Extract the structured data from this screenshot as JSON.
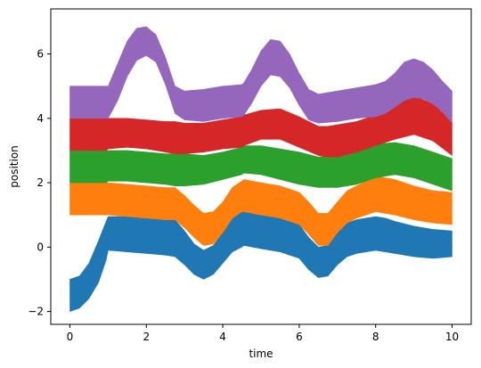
{
  "chart_data": {
    "type": "area",
    "title": "",
    "xlabel": "time",
    "ylabel": "position",
    "xlim": [
      -0.5,
      10.5
    ],
    "ylim": [
      -2.4,
      7.4
    ],
    "xticks": [
      0,
      2,
      4,
      6,
      8,
      10
    ],
    "yticks": [
      -2,
      0,
      2,
      4,
      6
    ],
    "grid": false,
    "legend": "none",
    "series": [
      {
        "color": "#1f77b4",
        "x": [
          0,
          0.25,
          0.5,
          0.75,
          0.95,
          1.0,
          1.5,
          2.0,
          2.5,
          2.75,
          3.0,
          3.25,
          3.5,
          3.75,
          4.0,
          4.25,
          4.5,
          4.55,
          5.0,
          5.5,
          6.0,
          6.25,
          6.5,
          6.75,
          7.0,
          7.25,
          7.5,
          7.75,
          8.0,
          8.25,
          8.5,
          9.0,
          9.5,
          10.0
        ],
        "upper": [
          -1.0,
          -0.9,
          -0.5,
          0.2,
          0.8,
          0.95,
          0.95,
          0.92,
          0.88,
          0.85,
          0.5,
          0.1,
          -0.1,
          0.05,
          0.45,
          0.95,
          1.1,
          1.15,
          1.05,
          0.95,
          0.7,
          0.3,
          0.0,
          0.05,
          0.45,
          0.75,
          0.85,
          0.9,
          0.95,
          0.9,
          0.8,
          0.65,
          0.55,
          0.5
        ],
        "lower": [
          -2.0,
          -1.9,
          -1.6,
          -1.1,
          -0.4,
          -0.1,
          -0.15,
          -0.2,
          -0.25,
          -0.3,
          -0.55,
          -0.85,
          -1.0,
          -0.85,
          -0.5,
          -0.15,
          0.0,
          0.05,
          -0.05,
          -0.15,
          -0.35,
          -0.7,
          -0.95,
          -0.9,
          -0.55,
          -0.3,
          -0.2,
          -0.15,
          -0.1,
          -0.15,
          -0.2,
          -0.3,
          -0.35,
          -0.3
        ]
      },
      {
        "color": "#ff7f0e",
        "x": [
          0,
          0.95,
          1.0,
          1.5,
          2.0,
          2.5,
          2.75,
          3.0,
          3.25,
          3.5,
          3.75,
          4.0,
          4.25,
          4.5,
          4.55,
          5.0,
          5.5,
          6.0,
          6.25,
          6.5,
          6.75,
          7.0,
          7.25,
          7.5,
          7.75,
          8.0,
          8.25,
          8.5,
          9.0,
          9.5,
          10.0
        ],
        "upper": [
          2.0,
          2.0,
          2.0,
          1.95,
          1.9,
          1.85,
          1.85,
          1.6,
          1.3,
          1.05,
          1.1,
          1.4,
          1.85,
          2.05,
          2.1,
          2.0,
          1.9,
          1.7,
          1.4,
          1.05,
          1.05,
          1.4,
          1.75,
          1.9,
          2.05,
          2.2,
          2.15,
          2.1,
          1.9,
          1.75,
          1.7
        ],
        "lower": [
          1.0,
          1.0,
          1.0,
          0.95,
          0.9,
          0.85,
          0.85,
          0.6,
          0.3,
          0.05,
          0.1,
          0.45,
          0.9,
          1.1,
          1.1,
          1.0,
          0.9,
          0.7,
          0.4,
          0.05,
          0.05,
          0.45,
          0.75,
          0.9,
          1.0,
          1.1,
          1.05,
          1.0,
          0.85,
          0.75,
          0.7
        ]
      },
      {
        "color": "#2ca02c",
        "x": [
          0,
          0.95,
          1.0,
          1.5,
          2.0,
          2.5,
          2.75,
          3.0,
          3.5,
          4.0,
          4.5,
          4.55,
          5.0,
          5.5,
          6.0,
          6.5,
          7.0,
          7.5,
          8.0,
          8.5,
          9.0,
          9.5,
          10.0
        ],
        "upper": [
          3.0,
          3.0,
          3.0,
          3.0,
          2.95,
          2.9,
          2.9,
          2.9,
          2.85,
          2.95,
          3.1,
          3.15,
          3.15,
          3.05,
          2.95,
          2.8,
          2.85,
          3.0,
          3.2,
          3.25,
          3.15,
          2.95,
          2.75
        ],
        "lower": [
          2.0,
          2.0,
          2.05,
          2.05,
          2.0,
          1.95,
          1.9,
          1.9,
          1.95,
          2.1,
          2.25,
          2.3,
          2.25,
          2.1,
          1.95,
          1.85,
          1.85,
          1.95,
          2.15,
          2.25,
          2.15,
          1.95,
          1.75
        ]
      },
      {
        "color": "#d62728",
        "x": [
          0,
          0.95,
          1.0,
          1.5,
          2.0,
          2.5,
          2.75,
          3.0,
          3.5,
          4.0,
          4.5,
          4.55,
          5.0,
          5.5,
          6.0,
          6.5,
          6.75,
          7.0,
          7.5,
          8.0,
          8.5,
          9.0,
          9.5,
          10.0
        ],
        "upper": [
          4.0,
          4.0,
          4.0,
          4.0,
          3.95,
          3.9,
          3.9,
          3.85,
          3.85,
          3.95,
          4.05,
          4.1,
          4.25,
          4.3,
          4.05,
          3.75,
          3.75,
          3.8,
          3.9,
          4.1,
          4.4,
          4.7,
          4.45,
          3.9
        ],
        "lower": [
          3.0,
          3.0,
          3.05,
          3.1,
          3.05,
          2.95,
          2.9,
          2.9,
          2.95,
          3.05,
          3.1,
          3.15,
          3.35,
          3.35,
          3.1,
          2.85,
          2.8,
          2.8,
          2.95,
          3.15,
          3.35,
          3.5,
          3.3,
          2.85
        ]
      },
      {
        "color": "#9467bd",
        "x": [
          0,
          0.95,
          1.0,
          1.25,
          1.5,
          1.75,
          2.0,
          2.25,
          2.5,
          2.75,
          3.0,
          3.5,
          4.0,
          4.5,
          4.55,
          4.75,
          5.0,
          5.25,
          5.5,
          5.75,
          6.0,
          6.25,
          6.5,
          7.0,
          7.5,
          8.0,
          8.25,
          8.5,
          8.75,
          9.0,
          9.25,
          9.5,
          9.75,
          10.0
        ],
        "upper": [
          5.0,
          5.0,
          5.0,
          5.7,
          6.4,
          6.8,
          6.85,
          6.6,
          5.9,
          5.0,
          4.85,
          4.9,
          5.0,
          5.05,
          5.1,
          5.5,
          6.1,
          6.45,
          6.4,
          6.0,
          5.4,
          4.9,
          4.75,
          4.85,
          4.95,
          5.05,
          5.15,
          5.4,
          5.75,
          5.85,
          5.75,
          5.5,
          5.15,
          4.85
        ],
        "lower": [
          4.0,
          4.0,
          4.0,
          4.55,
          5.3,
          5.8,
          5.95,
          5.75,
          5.05,
          4.15,
          3.95,
          3.9,
          4.0,
          4.05,
          4.1,
          4.45,
          5.0,
          5.35,
          5.3,
          4.95,
          4.4,
          3.95,
          3.85,
          3.9,
          4.0,
          4.05,
          4.15,
          4.35,
          4.55,
          4.65,
          4.6,
          4.45,
          4.2,
          3.85
        ]
      }
    ]
  }
}
